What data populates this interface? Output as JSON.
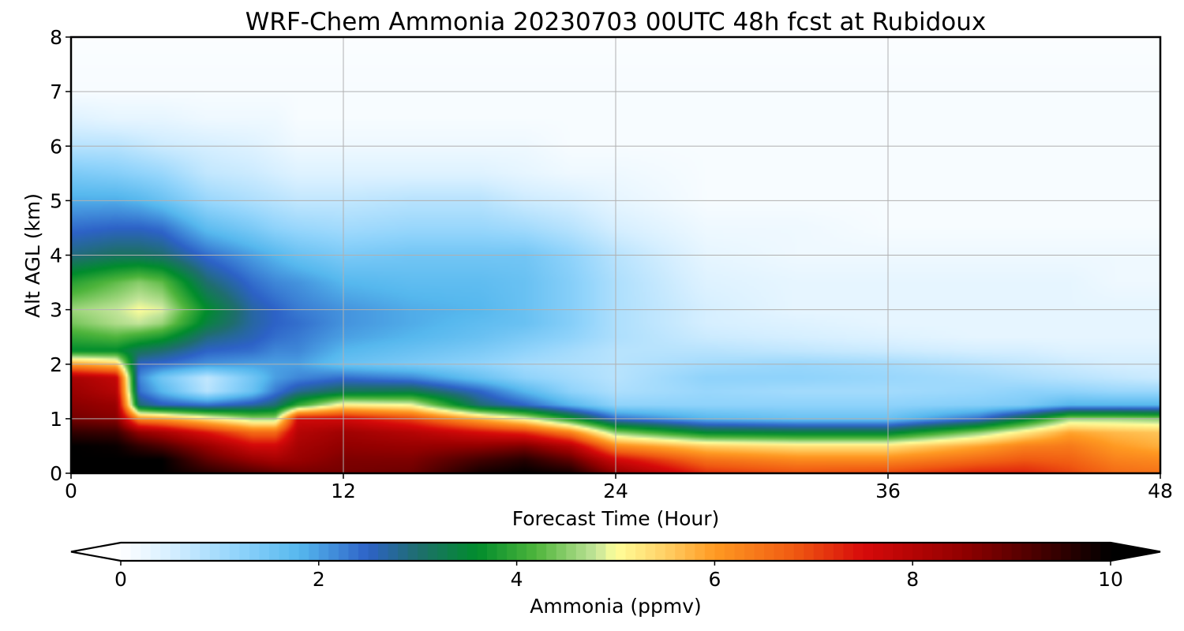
{
  "chart_data": {
    "type": "heatmap",
    "title": "WRF-Chem Ammonia  20230703 00UTC 48h fcst at Rubidoux",
    "xlabel": "Forecast Time (Hour)",
    "ylabel": "Alt AGL (km)",
    "xlim": [
      0,
      48
    ],
    "ylim": [
      0,
      8
    ],
    "x_ticks": [
      "0",
      "12",
      "24",
      "36",
      "48"
    ],
    "y_ticks": [
      "0",
      "1",
      "2",
      "3",
      "4",
      "5",
      "6",
      "7",
      "8"
    ],
    "grid": true,
    "colorbar": {
      "label": "Ammonia  (ppmv)",
      "range": [
        0,
        10
      ],
      "ticks": [
        "0",
        "2",
        "4",
        "6",
        "8",
        "10"
      ],
      "extend": "both",
      "stops": [
        {
          "v": 0.0,
          "c": "#ffffff"
        },
        {
          "v": 0.5,
          "c": "#d6efff"
        },
        {
          "v": 1.2,
          "c": "#8fd3fb"
        },
        {
          "v": 1.8,
          "c": "#56b8ee"
        },
        {
          "v": 2.5,
          "c": "#2d62c7"
        },
        {
          "v": 3.0,
          "c": "#1f6e6e"
        },
        {
          "v": 3.6,
          "c": "#008c2c"
        },
        {
          "v": 4.2,
          "c": "#4fb53c"
        },
        {
          "v": 4.8,
          "c": "#c3e59a"
        },
        {
          "v": 5.0,
          "c": "#ffff9a"
        },
        {
          "v": 5.5,
          "c": "#ffd066"
        },
        {
          "v": 6.0,
          "c": "#ff9a22"
        },
        {
          "v": 6.8,
          "c": "#f05a12"
        },
        {
          "v": 7.5,
          "c": "#d70a0a"
        },
        {
          "v": 8.5,
          "c": "#920000"
        },
        {
          "v": 10.0,
          "c": "#000000"
        }
      ]
    },
    "x": [
      0,
      2,
      3,
      4,
      6,
      8,
      9,
      10,
      12,
      15,
      18,
      20,
      22,
      24,
      28,
      32,
      36,
      40,
      42,
      44,
      46,
      48
    ],
    "y": [
      0,
      0.25,
      0.5,
      0.75,
      1.0,
      1.25,
      1.5,
      1.75,
      2.0,
      2.25,
      2.5,
      2.75,
      3.0,
      3.5,
      4.0,
      4.5,
      5.0,
      5.5,
      6.0,
      6.5,
      7.0,
      8.0
    ],
    "z": [
      [
        10,
        10,
        10,
        10,
        9.6,
        9.2,
        9,
        8.8,
        8.8,
        8.9,
        9.8,
        10,
        9.8,
        8.5,
        7.2,
        6.9,
        7,
        7.3,
        7.3,
        7.0,
        6.6,
        6.5
      ],
      [
        10,
        10,
        10,
        10,
        9,
        8.4,
        8.2,
        8.4,
        8.7,
        8.7,
        9.3,
        9.6,
        9,
        7.6,
        6.5,
        6.2,
        6.2,
        6.6,
        6.8,
        6.7,
        6.3,
        6.2
      ],
      [
        10,
        9.9,
        9.5,
        9.2,
        8.4,
        7.6,
        7.6,
        8.2,
        8.5,
        8.4,
        8.5,
        8.7,
        8,
        6.2,
        5.5,
        5.3,
        5.3,
        5.9,
        6.3,
        6.4,
        6.0,
        5.8
      ],
      [
        9.5,
        9.4,
        8.5,
        8.2,
        7.4,
        6.6,
        6.6,
        8.0,
        8.3,
        8.0,
        7.5,
        7.2,
        6.3,
        4.5,
        3.5,
        3.4,
        3.4,
        4.5,
        5.2,
        5.9,
        5.7,
        5.6
      ],
      [
        8.8,
        8.6,
        6.2,
        6.0,
        5.3,
        4.6,
        4.6,
        7.6,
        7.6,
        7.0,
        5.8,
        5.0,
        3.8,
        2.4,
        1.8,
        1.6,
        1.6,
        2.4,
        3.4,
        4.6,
        4.6,
        4.5
      ],
      [
        8.6,
        8.4,
        3.0,
        2.6,
        2.4,
        2.7,
        3.0,
        4.0,
        5.2,
        5.0,
        3.0,
        2.5,
        1.8,
        1.2,
        1.2,
        1.2,
        1.2,
        1.3,
        1.4,
        1.8,
        1.8,
        1.8
      ],
      [
        8.4,
        8.0,
        2.4,
        1.8,
        0.8,
        1.6,
        2.3,
        2.8,
        3.2,
        3.3,
        2.5,
        1.8,
        1.2,
        0.9,
        1.1,
        1.0,
        1.0,
        1.1,
        1.2,
        1.2,
        1.1,
        1.1
      ],
      [
        8.2,
        7.8,
        2.2,
        1.5,
        0.7,
        1.5,
        2.0,
        2.2,
        2.4,
        2.2,
        1.6,
        1.2,
        1.0,
        0.8,
        1.2,
        1.2,
        1.1,
        1.0,
        0.9,
        0.8,
        0.7,
        0.6
      ],
      [
        6.0,
        5.6,
        2.5,
        2.4,
        2.1,
        2.0,
        2.0,
        2.0,
        1.6,
        1.4,
        1.2,
        1.0,
        0.9,
        0.8,
        1.0,
        1.1,
        1.0,
        0.8,
        0.7,
        0.6,
        0.5,
        0.5
      ],
      [
        3.6,
        3.6,
        3.2,
        3.0,
        2.5,
        2.4,
        2.2,
        2.2,
        1.8,
        1.6,
        1.4,
        1.2,
        1.0,
        0.8,
        0.8,
        0.7,
        0.6,
        0.5,
        0.5,
        0.4,
        0.4,
        0.4
      ],
      [
        4.0,
        4.2,
        4.0,
        3.8,
        2.9,
        2.6,
        2.4,
        2.3,
        2.0,
        1.8,
        1.6,
        1.4,
        1.2,
        0.9,
        0.6,
        0.5,
        0.4,
        0.3,
        0.3,
        0.3,
        0.3,
        0.3
      ],
      [
        4.4,
        4.7,
        4.8,
        4.6,
        3.4,
        2.7,
        2.5,
        2.4,
        2.1,
        1.9,
        1.7,
        1.6,
        1.3,
        0.9,
        0.5,
        0.4,
        0.3,
        0.3,
        0.3,
        0.3,
        0.3,
        0.3
      ],
      [
        4.6,
        4.8,
        5.0,
        4.9,
        3.6,
        2.7,
        2.5,
        2.3,
        2.1,
        1.9,
        1.8,
        1.6,
        1.3,
        0.9,
        0.5,
        0.3,
        0.3,
        0.3,
        0.3,
        0.3,
        0.3,
        0.3
      ],
      [
        3.9,
        4.3,
        4.5,
        4.3,
        3.0,
        2.4,
        2.2,
        2.1,
        1.8,
        1.7,
        1.7,
        1.6,
        1.3,
        0.9,
        0.4,
        0.3,
        0.3,
        0.3,
        0.3,
        0.3,
        0.2,
        0.2
      ],
      [
        2.9,
        3.1,
        3.1,
        3.0,
        2.4,
        2.0,
        1.8,
        1.6,
        1.4,
        1.5,
        1.5,
        1.5,
        1.2,
        0.8,
        0.3,
        0.2,
        0.2,
        0.2,
        0.2,
        0.2,
        0.2,
        0.2
      ],
      [
        2.4,
        2.5,
        2.5,
        2.4,
        1.7,
        1.4,
        1.2,
        1.1,
        1.0,
        1.1,
        1.1,
        1.0,
        0.8,
        0.5,
        0.2,
        0.2,
        0.1,
        0.1,
        0.1,
        0.1,
        0.1,
        0.1
      ],
      [
        1.9,
        1.9,
        1.8,
        1.6,
        1.1,
        0.9,
        0.8,
        0.7,
        0.7,
        0.8,
        0.8,
        0.6,
        0.5,
        0.3,
        0.1,
        0.1,
        0.1,
        0.1,
        0.1,
        0.1,
        0.1,
        0.1
      ],
      [
        1.4,
        1.3,
        1.2,
        1.1,
        0.7,
        0.6,
        0.5,
        0.4,
        0.4,
        0.4,
        0.4,
        0.3,
        0.2,
        0.2,
        0.1,
        0.1,
        0.1,
        0.1,
        0.1,
        0.1,
        0.1,
        0.1
      ],
      [
        0.8,
        0.8,
        0.7,
        0.6,
        0.5,
        0.4,
        0.3,
        0.2,
        0.2,
        0.2,
        0.2,
        0.2,
        0.1,
        0.1,
        0.1,
        0.1,
        0.1,
        0.1,
        0.1,
        0.1,
        0.1,
        0.1
      ],
      [
        0.4,
        0.3,
        0.3,
        0.3,
        0.2,
        0.2,
        0.2,
        0.1,
        0.1,
        0.1,
        0.1,
        0.1,
        0.1,
        0.1,
        0.1,
        0.1,
        0.1,
        0.1,
        0.1,
        0.1,
        0.1,
        0.1
      ],
      [
        0.1,
        0.1,
        0.1,
        0.1,
        0.1,
        0.1,
        0.1,
        0.1,
        0.1,
        0.1,
        0.1,
        0.1,
        0.1,
        0.1,
        0.1,
        0.1,
        0.1,
        0.1,
        0.1,
        0.1,
        0.1,
        0.1
      ],
      [
        0.05,
        0.05,
        0.05,
        0.05,
        0.05,
        0.05,
        0.05,
        0.05,
        0.05,
        0.05,
        0.05,
        0.05,
        0.05,
        0.05,
        0.05,
        0.05,
        0.05,
        0.05,
        0.05,
        0.05,
        0.05,
        0.05
      ]
    ]
  }
}
